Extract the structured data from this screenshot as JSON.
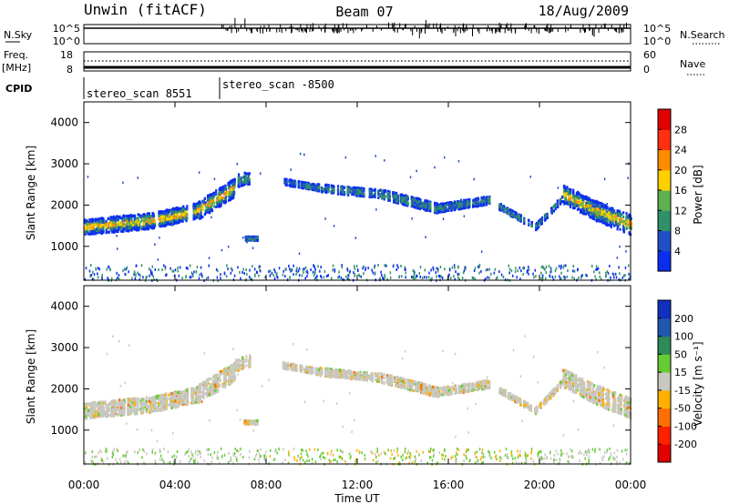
{
  "header": {
    "title": "Unwin (fitACF)",
    "beam": "Beam 07",
    "date": "18/Aug/2009"
  },
  "top_panels": {
    "nsky_label": "N.Sky",
    "nsky_ticks": [
      "10^5",
      "10^0"
    ],
    "nsearch_label": "N.Search",
    "nsearch_ticks": [
      "10^5",
      "10^0"
    ],
    "freq_label_1": "Freq.",
    "freq_label_2": "[MHz]",
    "freq_ticks": [
      "18",
      "8"
    ],
    "nave_label": "Nave",
    "nave_ticks": [
      "60",
      "0"
    ],
    "cpid_label": "CPID",
    "cpid_segments": [
      {
        "name": "stereo_scan 8551",
        "start_hour": 0,
        "end_hour": 6
      },
      {
        "name": "stereo_scan -8500",
        "start_hour": 6,
        "end_hour": 24
      }
    ]
  },
  "chart_data": [
    {
      "type": "heatmap",
      "panel": "power",
      "ylabel": "Slant Range [km]",
      "xlabel": "",
      "x_range_hours": [
        0,
        24
      ],
      "ylim": [
        180,
        4500
      ],
      "y_ticks": [
        1000,
        2000,
        3000,
        4000
      ],
      "colorbar": {
        "label": "Power [dB]",
        "ticks": [
          "4",
          "8",
          "12",
          "16",
          "20",
          "24",
          "28"
        ],
        "colors": [
          "#0a2ef0",
          "#1f50c8",
          "#30906a",
          "#60b050",
          "#ffd000",
          "#ff8c00",
          "#ff3010",
          "#e00000"
        ]
      }
    },
    {
      "type": "heatmap",
      "panel": "velocity",
      "ylabel": "Slant Range [km]",
      "xlabel": "Time UT",
      "x_range_hours": [
        0,
        24
      ],
      "x_ticks": [
        "00:00",
        "04:00",
        "08:00",
        "12:00",
        "16:00",
        "20:00",
        "00:00"
      ],
      "ylim": [
        180,
        4500
      ],
      "y_ticks": [
        1000,
        2000,
        3000,
        4000
      ],
      "colorbar": {
        "label": "Velocity [m s⁻¹]",
        "ticks": [
          "200",
          "100",
          "50",
          "15",
          "-15",
          "-50",
          "-100",
          "-200"
        ],
        "colors": [
          "#1030c0",
          "#2058b0",
          "#2e8b57",
          "#66cc33",
          "#c8c8c0",
          "#ffb000",
          "#ff7000",
          "#ff2000",
          "#e00000"
        ]
      }
    }
  ]
}
